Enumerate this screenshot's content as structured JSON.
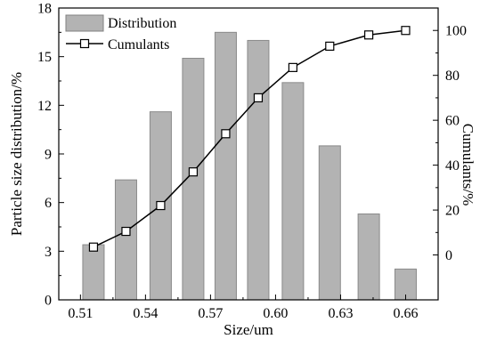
{
  "chart_data": {
    "type": "bar",
    "xlabel": "Size/um",
    "ylabel": "Particle size distribution/%",
    "y2label": "Cumulants/%",
    "xlim": [
      0.5,
      0.675
    ],
    "ylim": [
      0,
      18
    ],
    "y2lim": [
      -20,
      110
    ],
    "x_ticks": [
      "0.51",
      "0.54",
      "0.57",
      "0.60",
      "0.63",
      "0.66"
    ],
    "x_tick_values": [
      0.51,
      0.54,
      0.57,
      0.6,
      0.63,
      0.66
    ],
    "y_ticks": [
      "0",
      "3",
      "6",
      "9",
      "12",
      "15",
      "18"
    ],
    "y_tick_values": [
      0,
      3,
      6,
      9,
      12,
      15,
      18
    ],
    "y2_ticks": [
      "0",
      "20",
      "40",
      "60",
      "80",
      "100"
    ],
    "y2_tick_values": [
      0,
      20,
      40,
      60,
      80,
      100
    ],
    "grid": false,
    "legend_position": "top-left",
    "series": [
      {
        "name": "Distribution",
        "type": "bar",
        "axis": "left",
        "color": "#b3b3b3",
        "x": [
          0.516,
          0.531,
          0.547,
          0.562,
          0.577,
          0.592,
          0.608,
          0.625,
          0.643,
          0.66
        ],
        "values": [
          3.4,
          7.4,
          11.6,
          14.9,
          16.5,
          16.0,
          13.4,
          9.5,
          5.3,
          1.9
        ]
      },
      {
        "name": "Cumulants",
        "type": "line",
        "axis": "right",
        "marker": "open-square",
        "color": "#000000",
        "x": [
          0.516,
          0.531,
          0.547,
          0.562,
          0.577,
          0.592,
          0.608,
          0.625,
          0.643,
          0.66
        ],
        "values": [
          3.5,
          10.5,
          22.0,
          37.0,
          54.0,
          70.0,
          83.5,
          93.0,
          98.0,
          100.0
        ]
      }
    ]
  }
}
